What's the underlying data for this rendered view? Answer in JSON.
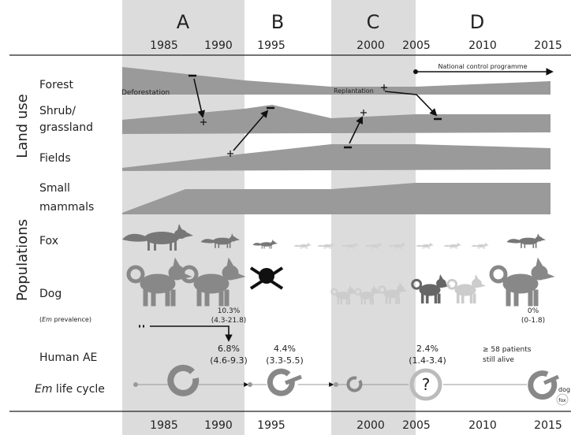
{
  "periods": [
    "A",
    "B",
    "C",
    "D"
  ],
  "years_top": [
    1985,
    1990,
    1995,
    2000,
    2005,
    2010,
    2015
  ],
  "years_bottom": [
    1985,
    1990,
    1995,
    2000,
    2005,
    2010,
    2015
  ],
  "control_programme": "National control programme",
  "groups": {
    "land_use": "Land use",
    "populations": "Populations"
  },
  "rows": {
    "forest": "Forest",
    "shrub": [
      "Shrub/",
      "grassland"
    ],
    "fields": "Fields",
    "small_mammals": [
      "Small",
      "mammals"
    ],
    "fox": "Fox",
    "dog": "Dog",
    "em_prevalence": [
      "(",
      "Em",
      " prevalence)"
    ],
    "human_ae": "Human AE",
    "life_cycle": [
      "Em",
      " life cycle"
    ]
  },
  "annotations": {
    "deforestation": "Deforestation",
    "replantation": "Replantation"
  },
  "dog_prevalence": [
    {
      "value": "10.3%",
      "ci": "(4.3-21.8)"
    },
    {
      "value": "0%",
      "ci": "(0-1.8)"
    }
  ],
  "human_ae": [
    {
      "value": "6.8%",
      "ci": "(4.6-9.3)"
    },
    {
      "value": "4.4%",
      "ci": "(3.3-5.5)"
    },
    {
      "value": "2.4%",
      "ci": "(1.4-3.4)"
    }
  ],
  "patients": [
    "≥ 58 patients",
    "still alive"
  ],
  "life_cycle_marks": {
    "unknown": "?",
    "dog": "dog",
    "fox": "fox"
  }
}
